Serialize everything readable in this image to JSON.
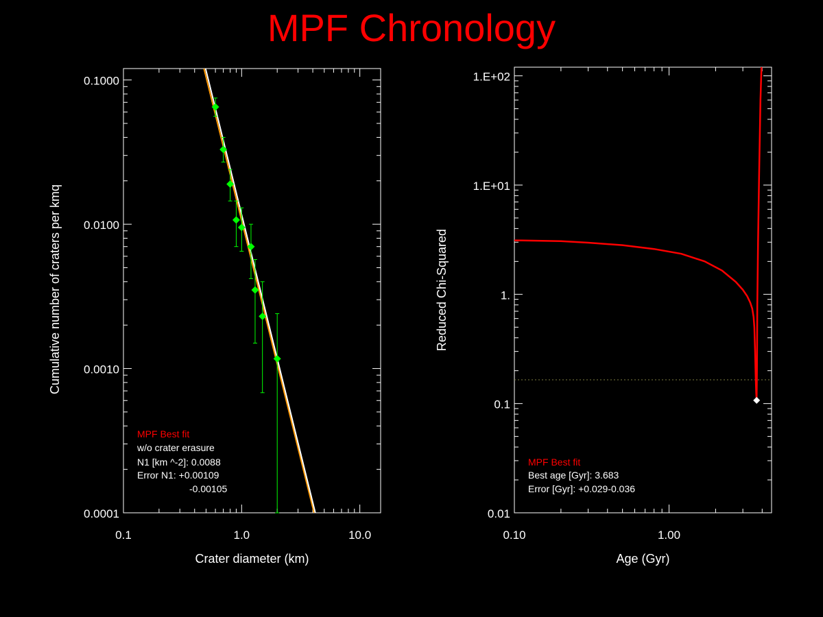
{
  "page": {
    "title": "MPF Chronology"
  },
  "colors": {
    "background": "#000000",
    "title": "#ff0000",
    "axes": "#ffffff",
    "data_points": "#00ff00",
    "fit_white": "#ffffff",
    "fit_orange": "#ff9900",
    "chi_curve": "#ff0000",
    "threshold": "#808040",
    "minimum_marker": "#ffffff",
    "label_red": "#ff0000"
  },
  "chart_data": [
    {
      "type": "scatter",
      "scale": {
        "x": "log",
        "y": "log"
      },
      "xlabel": "Crater diameter (km)",
      "ylabel": "Cumulative number of craters per kmq",
      "xlim": [
        0.1,
        15
      ],
      "ylim": [
        0.0001,
        0.12
      ],
      "xticks": [
        {
          "v": 0.1,
          "label": "0.1"
        },
        {
          "v": 1,
          "label": "1.0"
        },
        {
          "v": 10,
          "label": "10.0"
        }
      ],
      "yticks": [
        {
          "v": 0.0001,
          "label": "0.0001"
        },
        {
          "v": 0.001,
          "label": "0.0010"
        },
        {
          "v": 0.01,
          "label": "0.0100"
        },
        {
          "v": 0.1,
          "label": "0.1000"
        }
      ],
      "points": [
        {
          "x": 0.6,
          "y": 0.065,
          "y_low": 0.056,
          "y_high": 0.075
        },
        {
          "x": 0.7,
          "y": 0.033,
          "y_low": 0.027,
          "y_high": 0.04
        },
        {
          "x": 0.8,
          "y": 0.019,
          "y_low": 0.0145,
          "y_high": 0.024
        },
        {
          "x": 0.9,
          "y": 0.0107,
          "y_low": 0.007,
          "y_high": 0.0145
        },
        {
          "x": 1.0,
          "y": 0.0095,
          "y_low": 0.0065,
          "y_high": 0.013
        },
        {
          "x": 1.2,
          "y": 0.007,
          "y_low": 0.0042,
          "y_high": 0.01
        },
        {
          "x": 1.3,
          "y": 0.0035,
          "y_low": 0.0015,
          "y_high": 0.0057
        },
        {
          "x": 1.5,
          "y": 0.0023,
          "y_low": 0.00068,
          "y_high": 0.004
        },
        {
          "x": 2.0,
          "y": 0.00117,
          "y_low": 0.0001,
          "y_high": 0.0024
        }
      ],
      "fit_lines": [
        {
          "color": "white",
          "points": [
            [
              0.495,
              0.12
            ],
            [
              4.2,
              0.0001
            ]
          ]
        },
        {
          "color": "orange",
          "points": [
            [
              0.48,
              0.12
            ],
            [
              4.1,
              0.0001
            ]
          ]
        }
      ],
      "legend": {
        "title": "MPF Best fit",
        "lines": [
          "w/o crater erasure",
          "N1 [km ^-2]: 0.0088",
          "Error N1: +0.00109",
          "-0.00105"
        ]
      }
    },
    {
      "type": "line",
      "scale": {
        "x": "log",
        "y": "log"
      },
      "xlabel": "Age (Gyr)",
      "ylabel": "Reduced Chi-Squared",
      "xlim": [
        0.1,
        4.6
      ],
      "ylim": [
        0.01,
        120
      ],
      "xticks": [
        {
          "v": 0.1,
          "label": "0.10"
        },
        {
          "v": 1,
          "label": "1.00"
        }
      ],
      "yticks": [
        {
          "v": 0.01,
          "label": "0.01"
        },
        {
          "v": 0.1,
          "label": "0.1"
        },
        {
          "v": 1,
          "label": "1."
        },
        {
          "v": 10,
          "label": "1.E+01"
        },
        {
          "v": 100,
          "label": "1.E+02"
        }
      ],
      "series": [
        {
          "x": [
            0.1,
            0.2,
            0.3,
            0.5,
            0.8,
            1.2,
            1.7,
            2.2,
            2.7,
            3.0,
            3.2,
            3.35,
            3.45,
            3.52,
            3.56,
            3.6,
            3.63,
            3.66,
            3.683,
            3.7,
            3.72,
            3.76,
            3.82,
            3.9,
            3.96
          ],
          "y": [
            3.12,
            3.07,
            2.97,
            2.82,
            2.6,
            2.35,
            2.0,
            1.65,
            1.3,
            1.1,
            0.96,
            0.84,
            0.74,
            0.62,
            0.5,
            0.3,
            0.18,
            0.125,
            0.107,
            0.2,
            0.8,
            3.0,
            12.0,
            60.0,
            120.0
          ]
        }
      ],
      "minimum": {
        "x": 3.683,
        "y": 0.107
      },
      "threshold_y": 0.165,
      "legend": {
        "title": "MPF Best fit",
        "lines": [
          "Best age [Gyr]: 3.683",
          "Error [Gyr]: +0.029-0.036"
        ]
      }
    }
  ]
}
